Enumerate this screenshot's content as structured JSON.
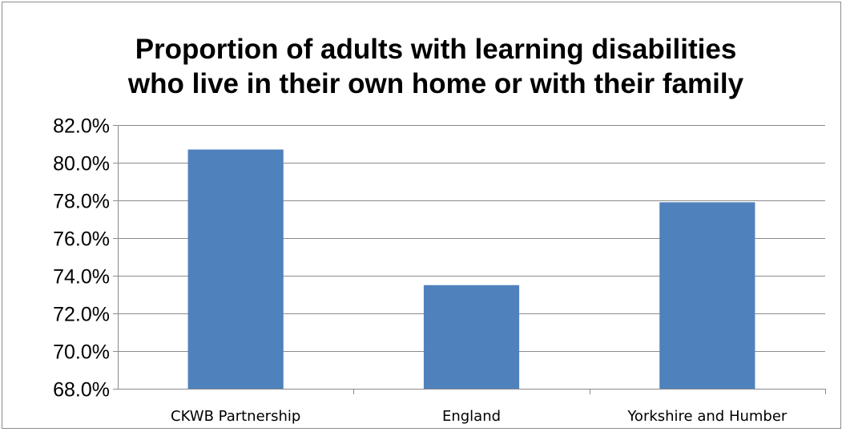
{
  "chart_data": {
    "type": "bar",
    "title_lines": [
      "Proportion of adults with learning disabilities",
      "who live in their own home or with their family"
    ],
    "categories": [
      "CKWB Partnership",
      "England",
      "Yorkshire and Humber"
    ],
    "values": [
      80.7,
      73.5,
      77.9
    ],
    "yticks": [
      "68.0%",
      "70.0%",
      "72.0%",
      "74.0%",
      "76.0%",
      "78.0%",
      "80.0%",
      "82.0%"
    ],
    "ylim": [
      68,
      82
    ],
    "ystep": 2,
    "grid": true,
    "legend": "none",
    "bar_color": "#4f81bd",
    "grid_color": "#8c8c8c"
  }
}
